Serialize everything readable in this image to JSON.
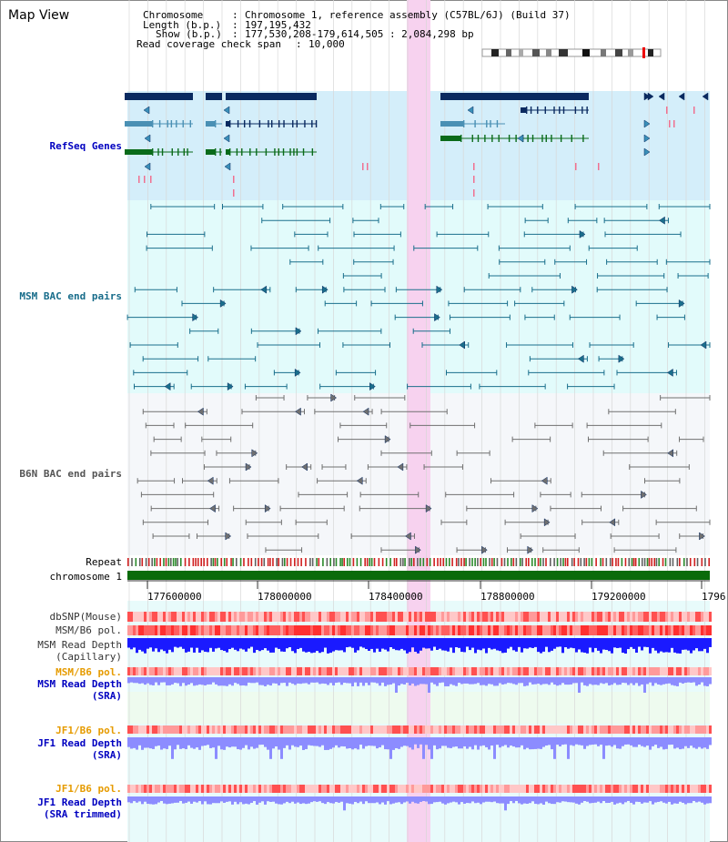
{
  "title": "Map View",
  "header": {
    "chromosome_label": "Chromosome",
    "chromosome_value": "Chromosome 1, reference assembly (C57BL/6J) (Build 37)",
    "length_label": "Length (b.p.)",
    "length_value": "197,195,432",
    "show_label": "Show (b.p.)",
    "show_value": "177,530,208-179,614,505 : 2,084,298 bp",
    "coverage_label": "Read coverage check span",
    "coverage_value": "10,000"
  },
  "tracks": {
    "refseq": "RefSeq Genes",
    "msm_bac": "MSM BAC end pairs",
    "b6n_bac": "B6N BAC end pairs",
    "repeat": "Repeat",
    "chromosome": "chromosome 1",
    "dbsnp": "dbSNP(Mouse)",
    "msm_b6_pol": "MSM/B6 pol.",
    "msm_read_depth_cap_1": "MSM Read Depth",
    "msm_read_depth_cap_2": "(Capillary)",
    "msm_b6_pol_2": "MSM/B6 pol.",
    "msm_read_depth_sra_1": "MSM Read Depth",
    "msm_read_depth_sra_2": "(SRA)",
    "jf1_b6_pol_1": "JF1/B6 pol.",
    "jf1_read_depth_sra_1": "JF1 Read Depth",
    "jf1_read_depth_sra_2": "(SRA)",
    "jf1_b6_pol_2": "JF1/B6 pol.",
    "jf1_read_depth_trim_1": "JF1 Read Depth",
    "jf1_read_depth_trim_2": "(SRA trimmed)"
  },
  "axis_ticks": [
    "177600000",
    "178000000",
    "178400000",
    "178800000",
    "179200000",
    "1796"
  ],
  "colors": {
    "refseq_bg": "#d4eefa",
    "msm_bg": "#e2fbfb",
    "b6n_bg": "#f5f7fa",
    "highlight": "#f7d2ef",
    "gene_dark": "#0a2a60",
    "gene_mid": "#4a90b4",
    "gene_green": "#0a6b1a",
    "msm_pair": "#1a6f8c",
    "b6n_pair": "#707070",
    "chromosome_bar": "#0b6b0b",
    "snp_red": "#ff4d4d",
    "depth_blue": "#1a1aff",
    "depth_light": "#8c8cff",
    "pol_orange": "#e69b00",
    "label_blue": "#0000c0",
    "label_teal": "#176c8a"
  }
}
